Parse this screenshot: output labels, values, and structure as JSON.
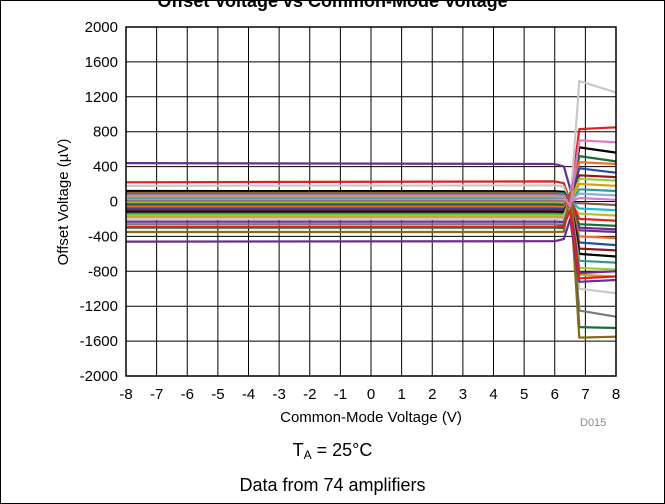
{
  "page": {
    "title": "Offset Voltage vs Common-Mode Voltage",
    "watermark": "D015",
    "condition_prefix": "T",
    "condition_sub": "A",
    "condition_rest": " = 25°C",
    "note": "Data from 74 amplifiers"
  },
  "chart_data": {
    "type": "line",
    "xlabel": "Common-Mode Voltage (V)",
    "ylabel": "Offset Voltage (µV)",
    "xlim": [
      -8,
      8
    ],
    "ylim": [
      -2000,
      2000
    ],
    "xticks": [
      -8,
      -7,
      -6,
      -5,
      -4,
      -3,
      -2,
      -1,
      0,
      1,
      2,
      3,
      4,
      5,
      6,
      7,
      8
    ],
    "yticks": [
      -2000,
      -1600,
      -1200,
      -800,
      -400,
      0,
      400,
      800,
      1200,
      1600,
      2000
    ],
    "grid": true,
    "legend": "none",
    "series_x": [
      -8,
      6.0,
      6.3,
      6.5,
      6.8,
      8
    ],
    "series": [
      {
        "color": "#6b2d8f",
        "values": [
          440,
          430,
          400,
          150,
          -300,
          -320
        ]
      },
      {
        "color": "#e0201b",
        "values": [
          220,
          230,
          210,
          0,
          830,
          850
        ]
      },
      {
        "color": "#c8c8c8",
        "values": [
          180,
          185,
          170,
          -50,
          1380,
          1250
        ]
      },
      {
        "color": "#000000",
        "values": [
          120,
          118,
          110,
          0,
          620,
          560
        ]
      },
      {
        "color": "#1a6e3a",
        "values": [
          100,
          100,
          95,
          -20,
          520,
          460
        ]
      },
      {
        "color": "#f06d2b",
        "values": [
          90,
          90,
          80,
          20,
          450,
          430
        ]
      },
      {
        "color": "#1f4fa8",
        "values": [
          80,
          80,
          70,
          -10,
          380,
          330
        ]
      },
      {
        "color": "#8b1a1a",
        "values": [
          60,
          60,
          55,
          0,
          300,
          280
        ]
      },
      {
        "color": "#9acd32",
        "values": [
          50,
          50,
          45,
          -30,
          260,
          240
        ]
      },
      {
        "color": "#d4a017",
        "values": [
          40,
          40,
          35,
          0,
          200,
          180
        ]
      },
      {
        "color": "#2a9d8f",
        "values": [
          30,
          30,
          25,
          -40,
          140,
          120
        ]
      },
      {
        "color": "#7fb3e0",
        "values": [
          20,
          20,
          18,
          10,
          90,
          70
        ]
      },
      {
        "color": "#e377c2",
        "values": [
          10,
          10,
          8,
          -5,
          40,
          20
        ]
      },
      {
        "color": "#8c564b",
        "values": [
          0,
          0,
          -2,
          -20,
          -20,
          -40
        ]
      },
      {
        "color": "#17becf",
        "values": [
          -10,
          -10,
          -12,
          5,
          -80,
          -100
        ]
      },
      {
        "color": "#bcbd22",
        "values": [
          -20,
          -20,
          -22,
          -10,
          -140,
          -160
        ]
      },
      {
        "color": "#e0201b",
        "values": [
          -30,
          -30,
          -35,
          20,
          -200,
          -220
        ]
      },
      {
        "color": "#1a6e3a",
        "values": [
          -40,
          -40,
          -45,
          -30,
          -260,
          -280
        ]
      },
      {
        "color": "#6b2d8f",
        "values": [
          -50,
          -50,
          -55,
          0,
          -330,
          -350
        ]
      },
      {
        "color": "#f06d2b",
        "values": [
          -60,
          -60,
          -65,
          30,
          -400,
          -420
        ]
      },
      {
        "color": "#1f4fa8",
        "values": [
          -80,
          -80,
          -85,
          0,
          -470,
          -500
        ]
      },
      {
        "color": "#8b1a1a",
        "values": [
          -100,
          -100,
          -105,
          40,
          -540,
          -560
        ]
      },
      {
        "color": "#000000",
        "values": [
          -120,
          -120,
          -125,
          20,
          -600,
          -630
        ]
      },
      {
        "color": "#2a9d8f",
        "values": [
          -140,
          -140,
          -145,
          0,
          -680,
          -700
        ]
      },
      {
        "color": "#9acd32",
        "values": [
          -160,
          -160,
          -165,
          50,
          -760,
          -780
        ]
      },
      {
        "color": "#d4a017",
        "values": [
          -180,
          -180,
          -185,
          30,
          -840,
          -860
        ]
      },
      {
        "color": "#c8c8c8",
        "values": [
          -200,
          -200,
          -205,
          60,
          -1000,
          -1050
        ]
      },
      {
        "color": "#6b2d8f",
        "values": [
          -230,
          -230,
          -235,
          0,
          -820,
          -800
        ]
      },
      {
        "color": "#7a7a7a",
        "values": [
          -260,
          -260,
          -265,
          40,
          -1250,
          -1320
        ]
      },
      {
        "color": "#1a6e3a",
        "values": [
          -300,
          -300,
          -305,
          80,
          -1440,
          -1450
        ]
      },
      {
        "color": "#8b6914",
        "values": [
          -350,
          -350,
          -345,
          100,
          -1560,
          -1550
        ]
      },
      {
        "color": "#6b2d8f",
        "values": [
          -460,
          -455,
          -430,
          -200,
          -920,
          -900
        ]
      },
      {
        "color": "#e0201b",
        "values": [
          -290,
          -290,
          -280,
          -100,
          -880,
          -860
        ]
      },
      {
        "color": "#e377c2",
        "values": [
          70,
          70,
          65,
          -60,
          700,
          680
        ]
      }
    ]
  }
}
